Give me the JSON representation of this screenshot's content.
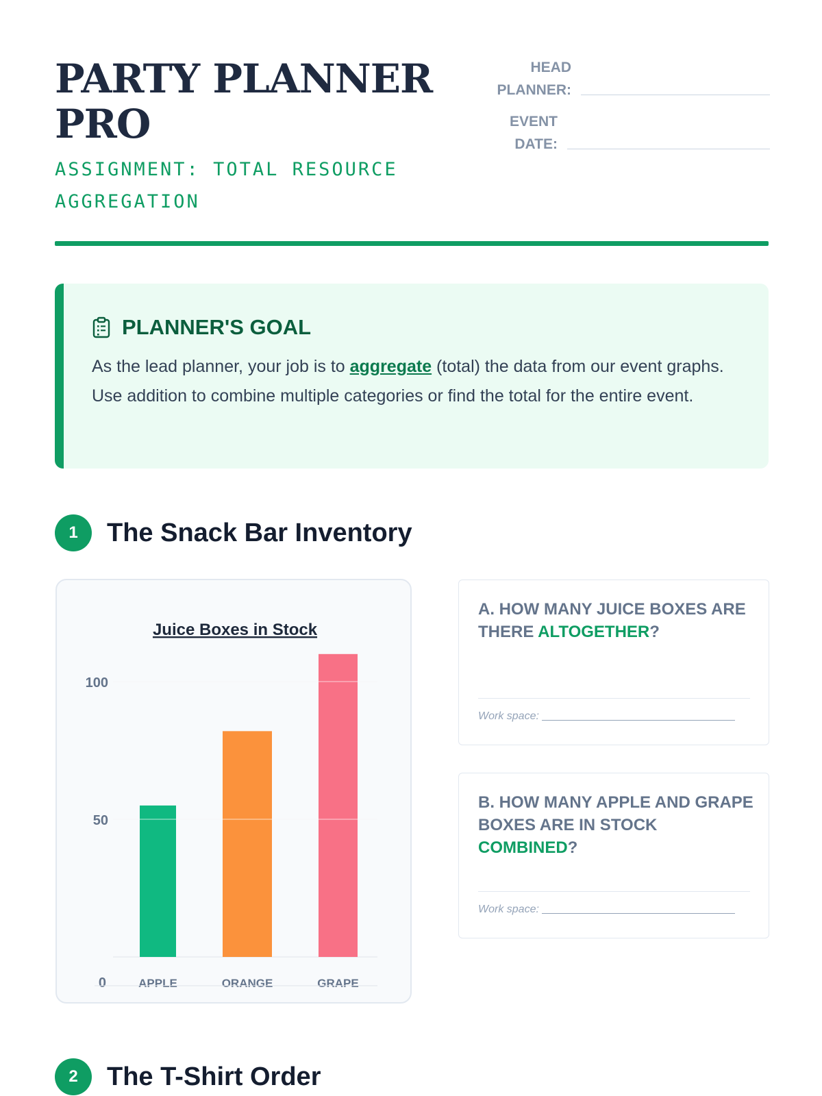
{
  "header": {
    "title": "PARTY PLANNER PRO",
    "subtitle": "ASSIGNMENT: TOTAL RESOURCE AGGREGATION",
    "head_planner_label": "HEAD\nPLANNER:",
    "event_date_label": "EVENT\nDATE:"
  },
  "goal": {
    "icon": "clipboard-icon",
    "title": "PLANNER'S GOAL",
    "text_before": "As the lead planner, your job is to ",
    "keyword": "aggregate",
    "text_after": " (total) the data from our event graphs. Use addition to combine multiple categories or find the total for the entire event."
  },
  "sections": [
    {
      "number": "1",
      "title": "The Snack Bar Inventory"
    },
    {
      "number": "2",
      "title": "The T-Shirt Order"
    }
  ],
  "chart_data": {
    "type": "bar",
    "title": "Juice Boxes in Stock",
    "categories": [
      "APPLE",
      "ORANGE",
      "GRAPE"
    ],
    "values": [
      55,
      82,
      110
    ],
    "colors": [
      "#10b981",
      "#fb923c",
      "#f87186"
    ],
    "ylim": [
      0,
      100
    ],
    "yticks": [
      0,
      50,
      100
    ],
    "grid": true,
    "xlabel": "",
    "ylabel": ""
  },
  "questions": [
    {
      "prefix": "A. How many juice boxes are there ",
      "highlight": "altogether",
      "suffix": "?",
      "work_label": "Work space:"
    },
    {
      "prefix": "B. How many apple and grape boxes are in stock ",
      "highlight": "combined",
      "suffix": "?",
      "work_label": "Work space:"
    }
  ]
}
